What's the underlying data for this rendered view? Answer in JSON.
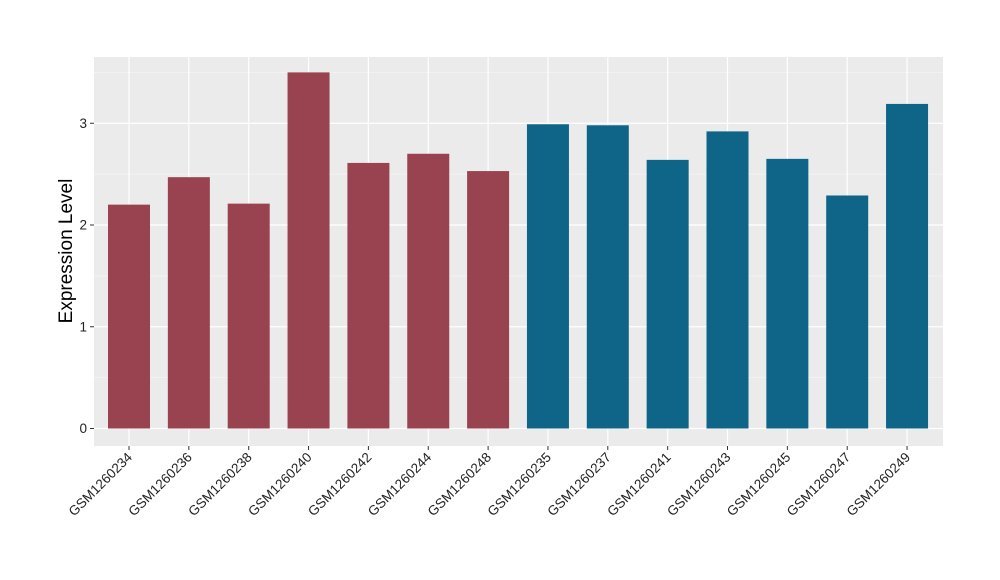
{
  "chart_data": {
    "type": "bar",
    "title": "",
    "xlabel": "",
    "ylabel": "Expression Level",
    "ylim": [
      0,
      3.5
    ],
    "yticks": [
      0,
      1,
      2,
      3
    ],
    "grid": true,
    "legend": "none",
    "colors": {
      "panel_background": "#ebebeb",
      "grid_major": "#ffffff",
      "grid_minor": "#f5f5f5",
      "group_a": "#9a4350",
      "group_b": "#0e6587"
    },
    "categories": [
      "GSM1260234",
      "GSM1260236",
      "GSM1260238",
      "GSM1260240",
      "GSM1260242",
      "GSM1260244",
      "GSM1260248",
      "GSM1260235",
      "GSM1260237",
      "GSM1260241",
      "GSM1260243",
      "GSM1260245",
      "GSM1260247",
      "GSM1260249"
    ],
    "values": [
      2.2,
      2.47,
      2.21,
      3.5,
      2.61,
      2.7,
      2.53,
      2.99,
      2.98,
      2.64,
      2.92,
      2.65,
      2.29,
      3.19
    ],
    "groups": [
      "a",
      "a",
      "a",
      "a",
      "a",
      "a",
      "a",
      "b",
      "b",
      "b",
      "b",
      "b",
      "b",
      "b"
    ]
  }
}
